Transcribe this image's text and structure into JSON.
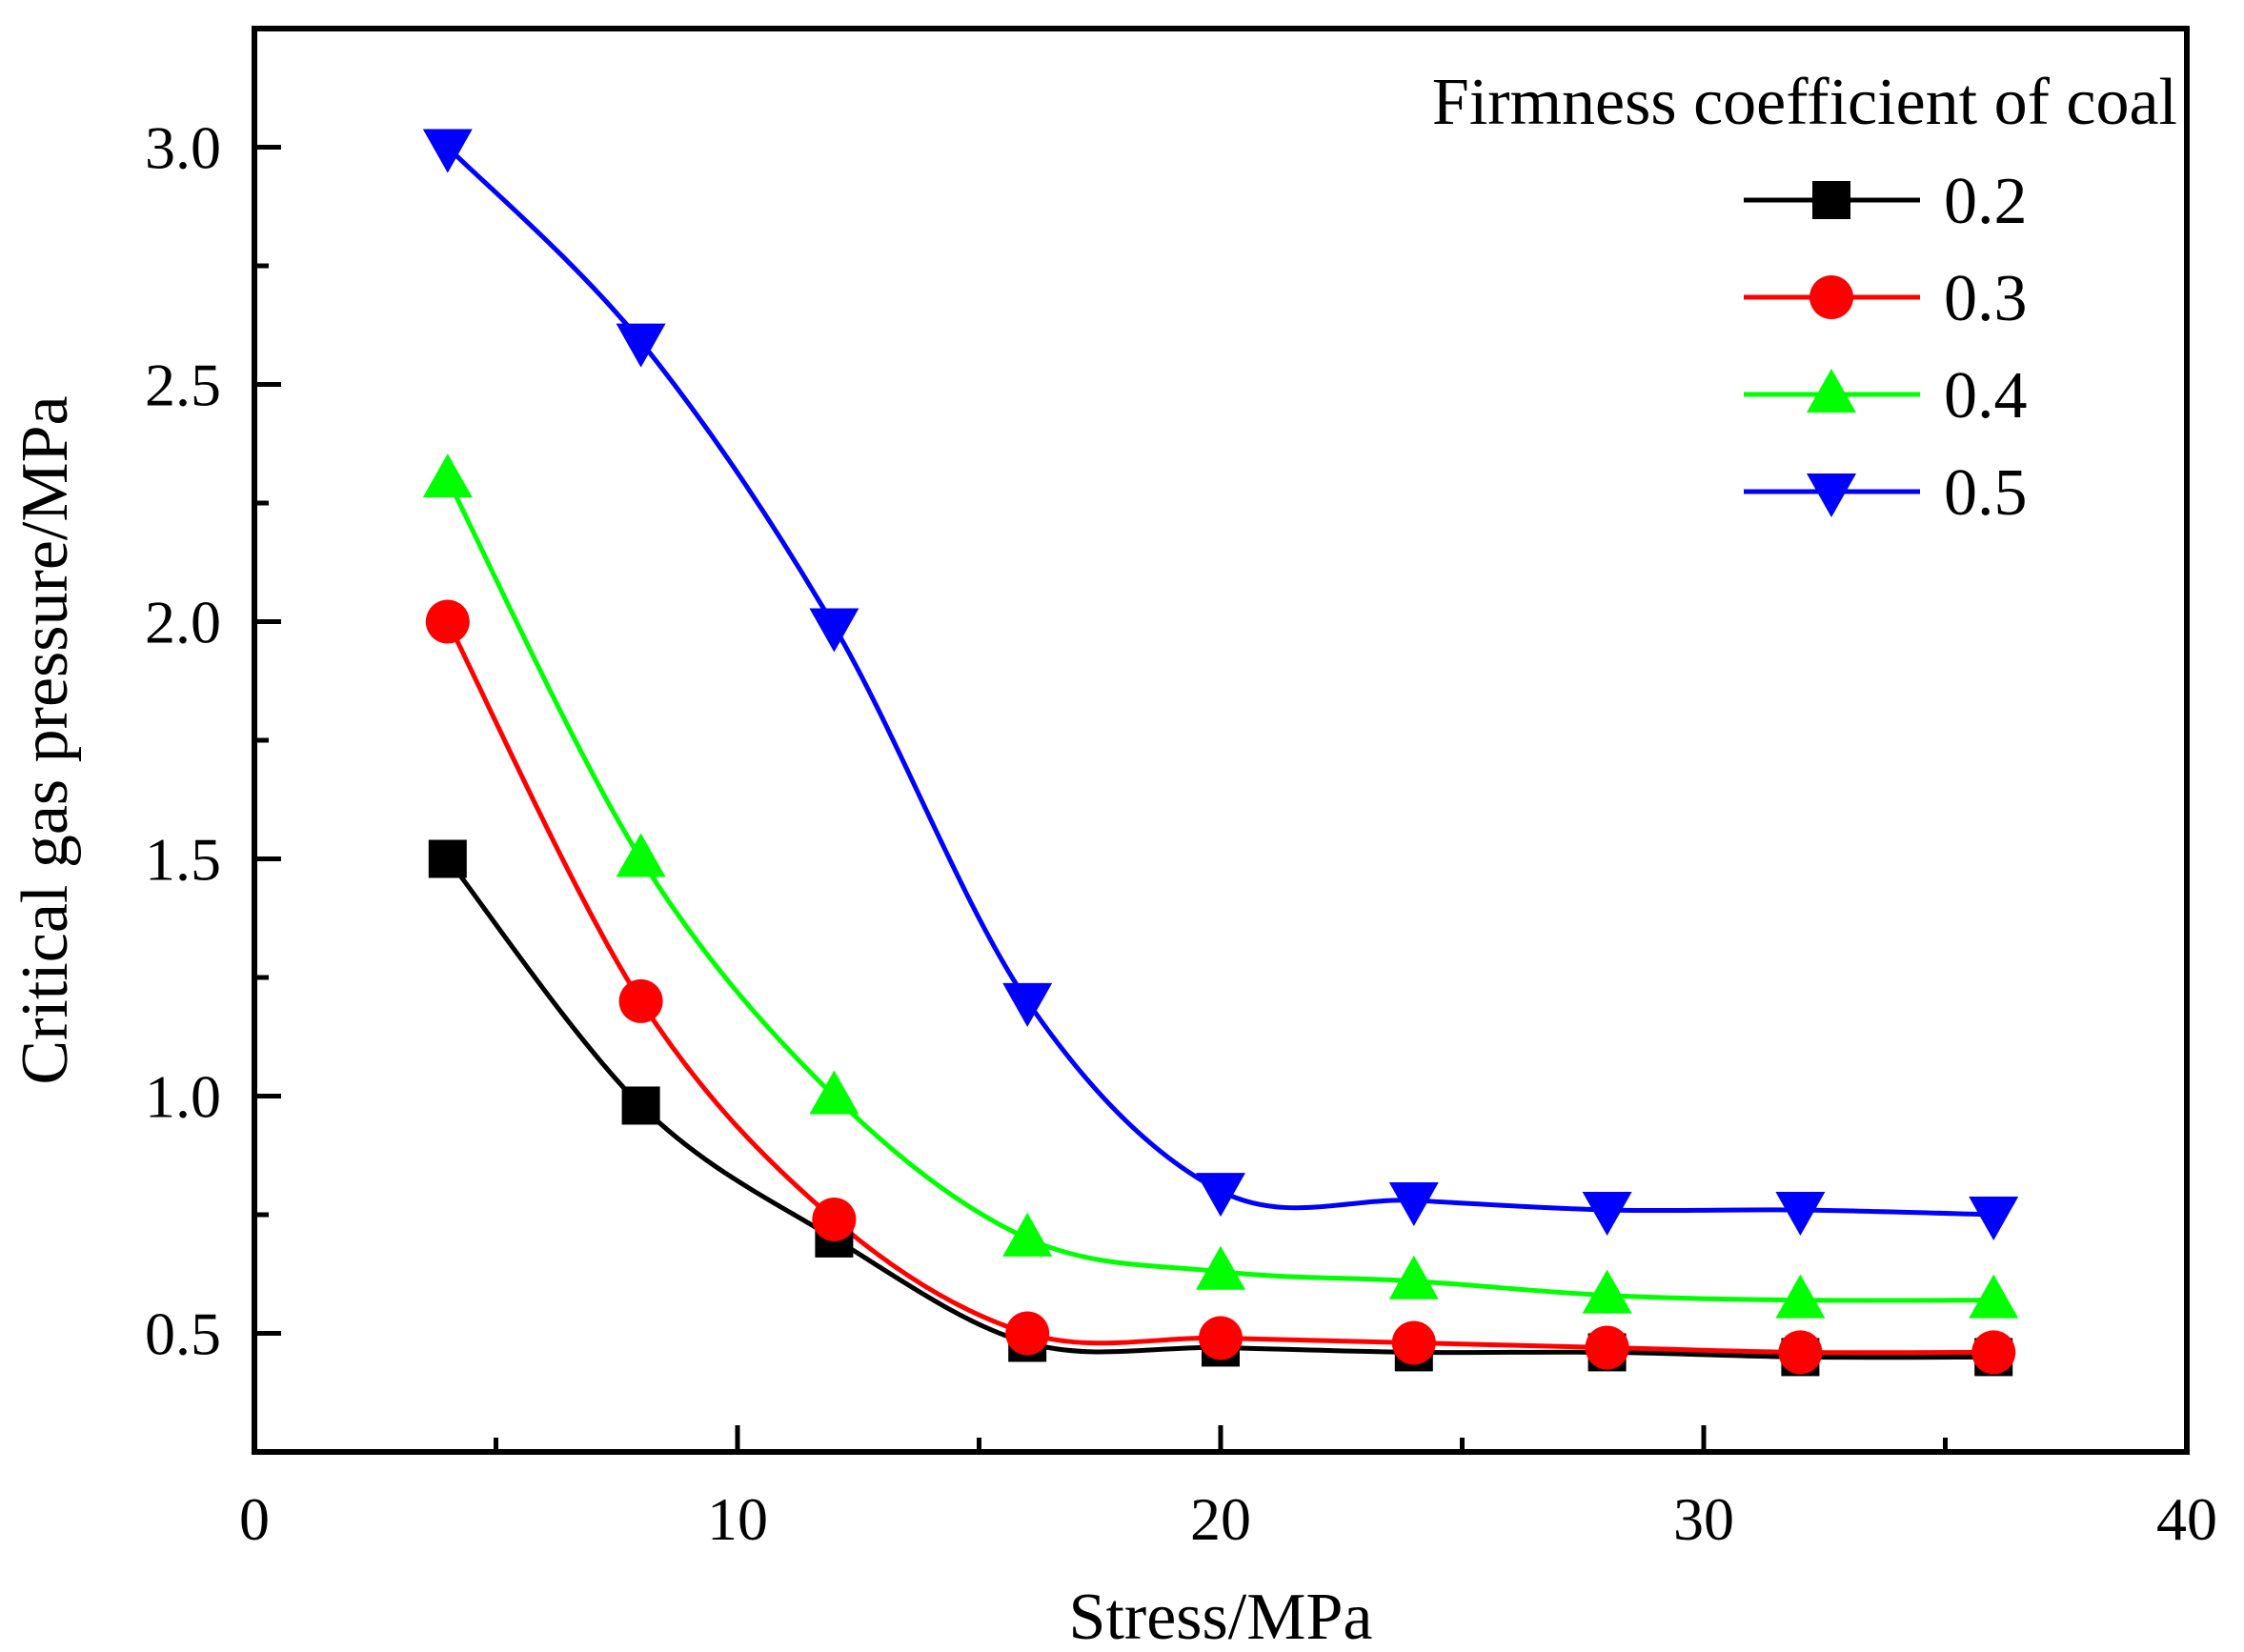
{
  "chart_data": {
    "type": "line",
    "xlabel": "Stress/MPa",
    "ylabel": "Critical gas pressure/MPa",
    "xlim": [
      0,
      40
    ],
    "ylim": [
      0.25,
      3.25
    ],
    "xticks": [
      0,
      10,
      20,
      30,
      40
    ],
    "xtick_labels": [
      "0",
      "10",
      "20",
      "30",
      "40"
    ],
    "yticks": [
      0.5,
      1.0,
      1.5,
      2.0,
      2.5,
      3.0
    ],
    "ytick_labels": [
      "0.5",
      "1.0",
      "1.5",
      "2.0",
      "2.5",
      "3.0"
    ],
    "grid": false,
    "legend": {
      "title": "Firmness coefficient of coal",
      "position": "top-right"
    },
    "x": [
      4,
      8,
      12,
      16,
      20,
      24,
      28,
      32,
      36
    ],
    "series": [
      {
        "name": "0.2",
        "color": "#000000",
        "marker": "square",
        "values": [
          1.5,
          0.98,
          0.7,
          0.48,
          0.47,
          0.46,
          0.46,
          0.45,
          0.45
        ]
      },
      {
        "name": "0.3",
        "color": "#ff0000",
        "marker": "circle",
        "values": [
          2.0,
          1.2,
          0.74,
          0.5,
          0.49,
          0.48,
          0.47,
          0.46,
          0.46
        ]
      },
      {
        "name": "0.4",
        "color": "#00ff00",
        "marker": "triangle-up",
        "values": [
          2.3,
          1.5,
          1.0,
          0.7,
          0.63,
          0.61,
          0.58,
          0.57,
          0.57
        ]
      },
      {
        "name": "0.5",
        "color": "#0000ff",
        "marker": "triangle-down",
        "values": [
          3.0,
          2.59,
          1.99,
          1.2,
          0.8,
          0.78,
          0.76,
          0.76,
          0.75
        ]
      }
    ]
  }
}
